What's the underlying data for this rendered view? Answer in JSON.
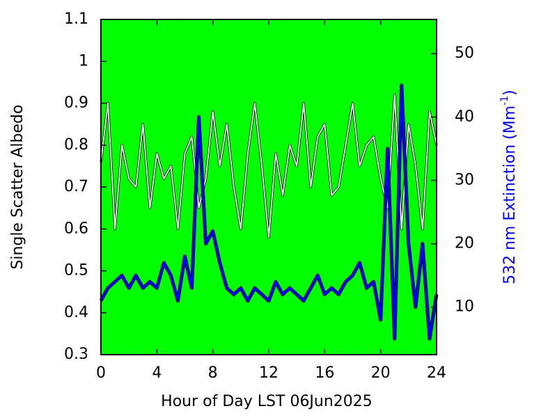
{
  "chart_data": {
    "type": "line",
    "xlabel": "Hour of Day LST 06Jun2025",
    "ylabel": "Single Scatter Albedo",
    "y2label_parts": [
      "532 nm Extinction (Mm",
      "-1",
      ")"
    ],
    "background": "#00ff00",
    "xlim": [
      0,
      24
    ],
    "xticks": [
      0,
      4,
      8,
      12,
      16,
      20,
      24
    ],
    "ylim": [
      0.3,
      1.1
    ],
    "yticks": [
      0.3,
      0.4,
      0.5,
      0.6,
      0.7,
      0.8,
      0.9,
      1,
      1.1
    ],
    "y2lim": [
      2.5,
      55.4
    ],
    "y2ticks": [
      10,
      20,
      30,
      40,
      50
    ],
    "x": [
      0,
      0.5,
      1,
      1.5,
      2,
      2.5,
      3,
      3.5,
      4,
      4.5,
      5,
      5.5,
      6,
      6.5,
      7,
      7.5,
      8,
      8.5,
      9,
      9.5,
      10,
      10.5,
      11,
      11.5,
      12,
      12.5,
      13,
      13.5,
      14,
      14.5,
      15,
      15.5,
      16,
      16.5,
      17,
      17.5,
      18,
      18.5,
      19,
      19.5,
      20,
      20.5,
      21,
      21.5,
      22,
      22.5,
      23,
      23.5,
      24
    ],
    "series": [
      {
        "name": "Single Scatter Albedo",
        "color": "#ffffff",
        "axis": "y",
        "values": [
          0.76,
          0.9,
          0.6,
          0.8,
          0.72,
          0.7,
          0.85,
          0.65,
          0.78,
          0.72,
          0.75,
          0.6,
          0.78,
          0.82,
          0.65,
          0.72,
          0.88,
          0.75,
          0.85,
          0.7,
          0.6,
          0.78,
          0.9,
          0.75,
          0.58,
          0.78,
          0.68,
          0.8,
          0.75,
          0.9,
          0.7,
          0.82,
          0.85,
          0.68,
          0.7,
          0.8,
          0.9,
          0.75,
          0.8,
          0.82,
          0.72,
          0.65,
          0.92,
          0.6,
          0.85,
          0.75,
          0.6,
          0.88,
          0.8
        ]
      },
      {
        "name": "532 nm Extinction",
        "color": "#0000ff",
        "axis": "y2",
        "values": [
          11,
          13,
          14,
          15,
          13,
          15,
          13,
          14,
          13,
          17,
          15,
          11,
          18,
          13,
          40,
          20,
          22,
          17,
          13,
          12,
          13,
          11,
          13,
          12,
          11,
          14,
          12,
          13,
          12,
          11,
          13,
          15,
          12,
          13,
          12,
          14,
          15,
          17,
          13,
          14,
          8,
          35,
          5,
          45,
          20,
          10,
          20,
          5,
          12
        ]
      }
    ]
  }
}
